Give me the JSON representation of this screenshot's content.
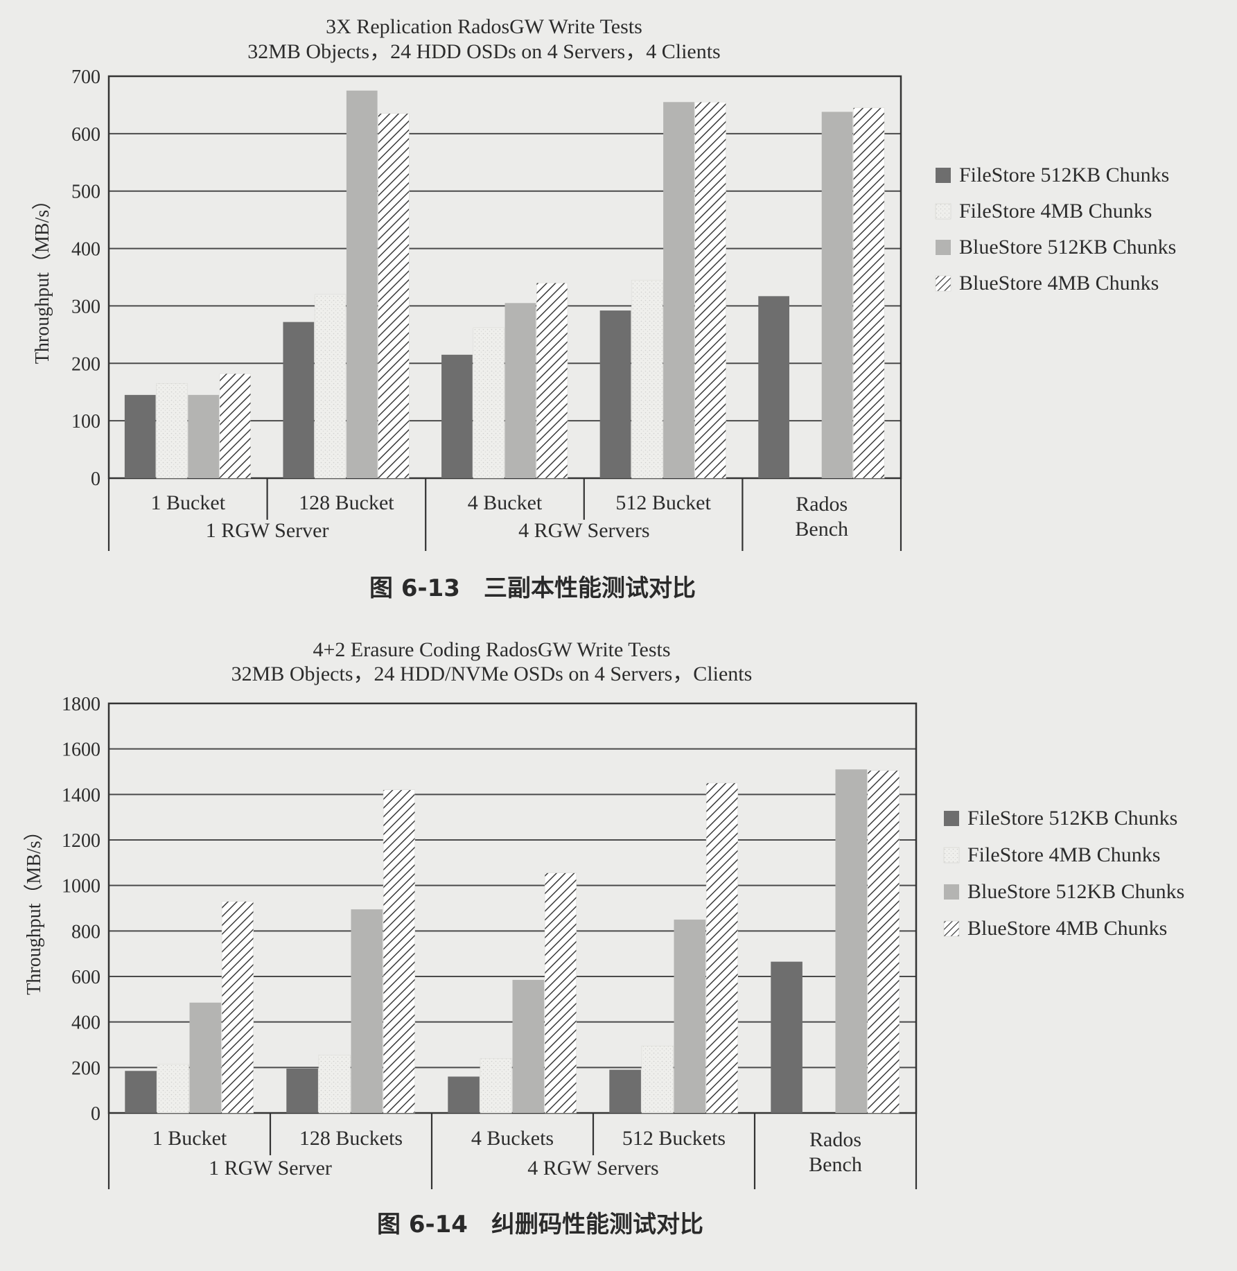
{
  "chart_data": [
    {
      "type": "bar",
      "title": [
        "3X Replication RadosGW Write Tests",
        "32MB Objects，24 HDD OSDs on 4 Servers，4 Clients"
      ],
      "ylabel": "Throughput（MB/s）",
      "ylim": [
        0,
        700
      ],
      "yticks": [
        0,
        100,
        200,
        300,
        400,
        500,
        600,
        700
      ],
      "grid": true,
      "legend_position": "right",
      "categories": [
        "1 Bucket",
        "128 Bucket",
        "4 Bucket",
        "512 Bucket",
        "Rados Bench"
      ],
      "category_lines": [
        [
          "1 Bucket"
        ],
        [
          "128 Bucket"
        ],
        [
          "4 Bucket"
        ],
        [
          "512 Bucket"
        ],
        [
          "Rados",
          "Bench"
        ]
      ],
      "groups": [
        {
          "label": "1 RGW Server",
          "span": [
            0,
            1
          ]
        },
        {
          "label": "4 RGW Servers",
          "span": [
            2,
            3
          ]
        }
      ],
      "series": [
        {
          "name": "FileStore 512KB Chunks",
          "values": [
            145,
            272,
            215,
            292,
            317
          ],
          "color": "#6e6e6e",
          "pattern": "solid"
        },
        {
          "name": "FileStore 4MB Chunks",
          "values": [
            165,
            320,
            262,
            345,
            0
          ],
          "color": "#ebebe8",
          "pattern": "speckle"
        },
        {
          "name": "BlueStore 512KB Chunks",
          "values": [
            145,
            675,
            305,
            655,
            638
          ],
          "color": "#b4b4b2",
          "pattern": "solid"
        },
        {
          "name": "BlueStore 4MB Chunks",
          "values": [
            182,
            635,
            340,
            655,
            645
          ],
          "color": "#ffffff",
          "pattern": "hatch"
        }
      ],
      "caption": "图 6-13　三副本性能测试对比"
    },
    {
      "type": "bar",
      "title": [
        "4+2 Erasure Coding RadosGW Write Tests",
        "32MB Objects，24 HDD/NVMe OSDs on 4 Servers，Clients"
      ],
      "ylabel": "Throughput（MB/s）",
      "ylim": [
        0,
        1800
      ],
      "yticks": [
        0,
        200,
        400,
        600,
        800,
        1000,
        1200,
        1400,
        1600,
        1800
      ],
      "grid": true,
      "legend_position": "right",
      "categories": [
        "1 Bucket",
        "128 Buckets",
        "4 Buckets",
        "512 Buckets",
        "Rados Bench"
      ],
      "category_lines": [
        [
          "1 Bucket"
        ],
        [
          "128 Buckets"
        ],
        [
          "4 Buckets"
        ],
        [
          "512 Buckets"
        ],
        [
          "Rados",
          "Bench"
        ]
      ],
      "groups": [
        {
          "label": "1 RGW Server",
          "span": [
            0,
            1
          ]
        },
        {
          "label": "4 RGW Servers",
          "span": [
            2,
            3
          ]
        }
      ],
      "series": [
        {
          "name": "FileStore 512KB Chunks",
          "values": [
            185,
            195,
            160,
            190,
            665
          ],
          "color": "#6e6e6e",
          "pattern": "solid"
        },
        {
          "name": "FileStore 4MB Chunks",
          "values": [
            215,
            255,
            240,
            295,
            0
          ],
          "color": "#ebebe8",
          "pattern": "speckle"
        },
        {
          "name": "BlueStore 512KB Chunks",
          "values": [
            485,
            895,
            585,
            850,
            1510
          ],
          "color": "#b4b4b2",
          "pattern": "solid"
        },
        {
          "name": "BlueStore 4MB Chunks",
          "values": [
            930,
            1420,
            1055,
            1450,
            1505
          ],
          "color": "#ffffff",
          "pattern": "hatch"
        }
      ],
      "caption": "图 6-14　纠删码性能测试对比"
    }
  ]
}
